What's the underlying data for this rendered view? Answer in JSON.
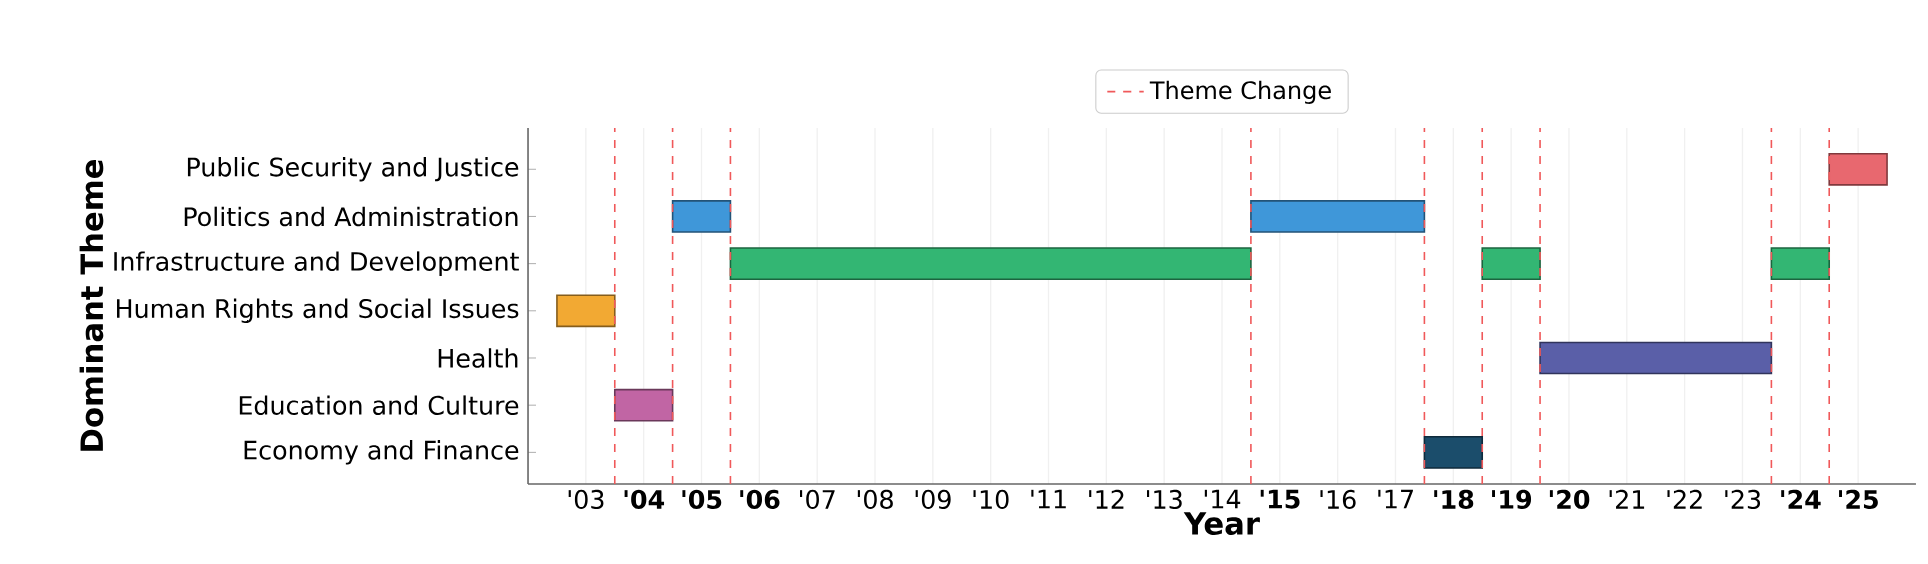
{
  "chart_data": {
    "type": "bar",
    "orientation": "horizontal",
    "xlabel": "Year",
    "ylabel": "Dominant Theme",
    "categories": [
      "Public Security and Justice",
      "Politics and Administration",
      "Infrastructure and Development",
      "Human Rights and Social Issues",
      "Health",
      "Education and Culture",
      "Economy and Finance"
    ],
    "series": [
      {
        "values": [
          1,
          1,
          9,
          1,
          4,
          1,
          1
        ],
        "base": [
          2024.5,
          2004.5,
          2005.5,
          2002.5,
          2019.5,
          2003.5,
          2017.5
        ],
        "colors": [
          "#e8686f",
          "#3f97d9",
          "#33b673",
          "#f2a933",
          "#5a5fa8",
          "#c165a4",
          "#1b4d6b"
        ]
      },
      {
        "values": [
          null,
          3,
          1,
          null,
          null,
          null,
          null
        ],
        "base": [
          null,
          2014.5,
          2018.5,
          null,
          null,
          null,
          null
        ],
        "colors": [
          null,
          "#3f97d9",
          "#33b673",
          null,
          null,
          null,
          null
        ]
      },
      {
        "values": [
          null,
          null,
          1,
          null,
          null,
          null,
          null
        ],
        "base": [
          null,
          null,
          2023.5,
          null,
          null,
          null,
          null
        ],
        "colors": [
          null,
          null,
          "#33b673",
          null,
          null,
          null,
          null
        ]
      }
    ],
    "xlim": [
      2002,
      2026
    ],
    "xticks": [
      {
        "value": 2003,
        "label": "'03"
      },
      {
        "value": 2004,
        "label": "'04"
      },
      {
        "value": 2005,
        "label": "'05"
      },
      {
        "value": 2006,
        "label": "'06"
      },
      {
        "value": 2007,
        "label": "'07"
      },
      {
        "value": 2008,
        "label": "'08"
      },
      {
        "value": 2009,
        "label": "'09"
      },
      {
        "value": 2010,
        "label": "'10"
      },
      {
        "value": 2011,
        "label": "'11"
      },
      {
        "value": 2012,
        "label": "'12"
      },
      {
        "value": 2013,
        "label": "'13"
      },
      {
        "value": 2014,
        "label": "'14"
      },
      {
        "value": 2015,
        "label": "'15"
      },
      {
        "value": 2016,
        "label": "'16"
      },
      {
        "value": 2017,
        "label": "'17"
      },
      {
        "value": 2018,
        "label": "'18"
      },
      {
        "value": 2019,
        "label": "'19"
      },
      {
        "value": 2020,
        "label": "'20"
      },
      {
        "value": 2021,
        "label": "'21"
      },
      {
        "value": 2022,
        "label": "'22"
      },
      {
        "value": 2023,
        "label": "'23"
      },
      {
        "value": 2024,
        "label": "'24"
      },
      {
        "value": 2025,
        "label": "'25"
      }
    ],
    "ref_lines": [
      {
        "axis": "x",
        "value": 2003.5,
        "label": "Theme Change",
        "color": "#f0595a",
        "line_style": "dashed"
      },
      {
        "axis": "x",
        "value": 2004.5,
        "color": "#f0595a",
        "line_style": "dashed"
      },
      {
        "axis": "x",
        "value": 2005.5,
        "color": "#f0595a",
        "line_style": "dashed"
      },
      {
        "axis": "x",
        "value": 2014.5,
        "color": "#f0595a",
        "line_style": "dashed"
      },
      {
        "axis": "x",
        "value": 2017.5,
        "color": "#f0595a",
        "line_style": "dashed"
      },
      {
        "axis": "x",
        "value": 2018.5,
        "color": "#f0595a",
        "line_style": "dashed"
      },
      {
        "axis": "x",
        "value": 2019.5,
        "color": "#f0595a",
        "line_style": "dashed"
      },
      {
        "axis": "x",
        "value": 2023.5,
        "color": "#f0595a",
        "line_style": "dashed"
      },
      {
        "axis": "x",
        "value": 2024.5,
        "color": "#f0595a",
        "line_style": "dashed"
      }
    ],
    "grid": "x",
    "legend": "top"
  }
}
